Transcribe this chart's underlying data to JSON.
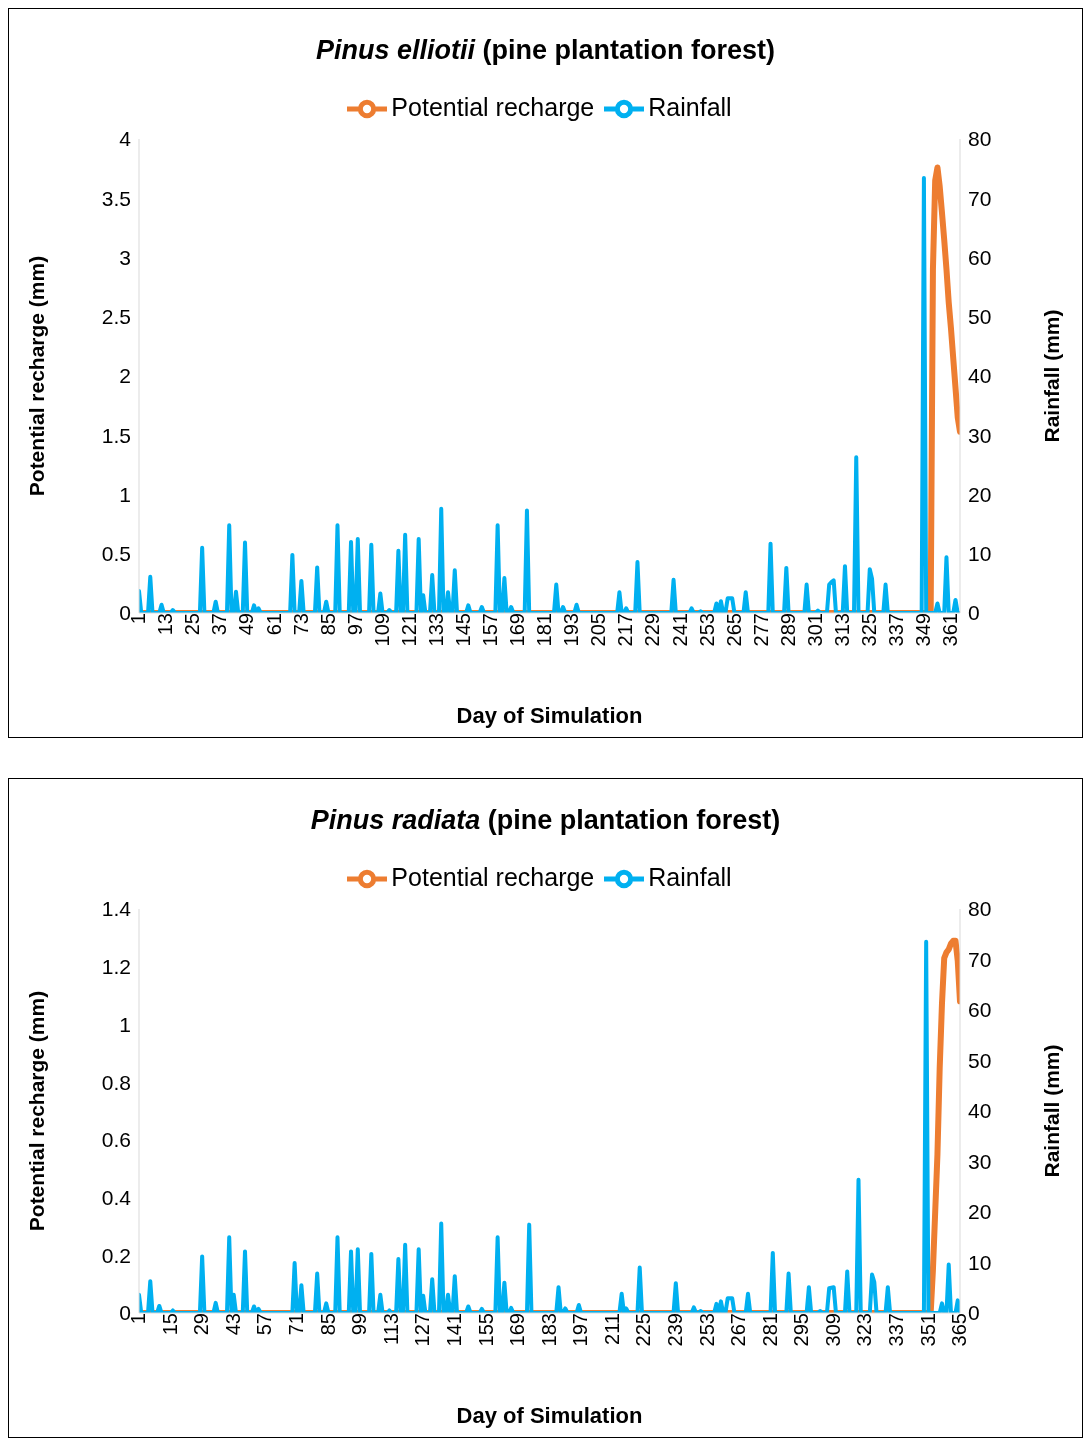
{
  "chart_data": [
    {
      "type": "line",
      "title": "Pinus elliotii (pine plantation forest)",
      "xlabel": "Day of Simulation",
      "ylabel": "Potential recharge (mm)",
      "y2label": "Rainfall (mm)",
      "xlim": [
        1,
        365
      ],
      "xticks": [
        1,
        13,
        25,
        37,
        49,
        61,
        73,
        85,
        97,
        109,
        121,
        133,
        145,
        157,
        169,
        181,
        193,
        205,
        217,
        229,
        241,
        253,
        265,
        277,
        289,
        301,
        313,
        325,
        337,
        349,
        361
      ],
      "ylim": [
        0,
        4
      ],
      "yticks": [
        0,
        0.5,
        1,
        1.5,
        2,
        2.5,
        3,
        3.5,
        4
      ],
      "y2lim": [
        0,
        80
      ],
      "y2ticks": [
        0,
        10,
        20,
        30,
        40,
        50,
        60,
        70,
        80
      ],
      "legend": "top",
      "grid": false,
      "series": [
        {
          "name": "Potential recharge",
          "color": "#ed7d31",
          "x": [
            1,
            352,
            353,
            354,
            355,
            356,
            357,
            358,
            359,
            360,
            361,
            362,
            363,
            364,
            365
          ],
          "values": [
            0,
            0,
            2.9,
            3.65,
            3.76,
            3.6,
            3.38,
            3.15,
            2.9,
            2.62,
            2.4,
            2.15,
            1.9,
            1.65,
            1.53
          ]
        },
        {
          "name": "Rainfall",
          "color": "#00b0f0",
          "axis": "y2",
          "x": [
            1,
            2,
            5,
            6,
            7,
            10,
            11,
            12,
            15,
            16,
            17,
            28,
            29,
            30,
            34,
            35,
            36,
            40,
            41,
            42,
            43,
            44,
            45,
            47,
            48,
            49,
            51,
            52,
            53,
            54,
            55,
            68,
            69,
            70,
            72,
            73,
            74,
            79,
            80,
            81,
            83,
            84,
            85,
            88,
            89,
            90,
            94,
            95,
            96,
            97,
            98,
            99,
            103,
            104,
            105,
            107,
            108,
            109,
            111,
            112,
            113,
            115,
            116,
            117,
            118,
            119,
            120,
            124,
            125,
            126,
            127,
            128,
            130,
            131,
            132,
            134,
            135,
            136,
            137,
            138,
            139,
            140,
            141,
            142,
            146,
            147,
            148,
            152,
            153,
            154,
            159,
            160,
            161,
            162,
            163,
            164,
            165,
            166,
            167,
            172,
            173,
            174,
            185,
            186,
            187,
            188,
            189,
            190,
            194,
            195,
            196,
            213,
            214,
            215,
            216,
            217,
            218,
            221,
            222,
            223,
            237,
            238,
            239,
            245,
            246,
            247,
            249,
            250,
            251,
            256,
            257,
            258,
            259,
            260,
            261,
            262,
            263,
            264,
            265,
            269,
            270,
            271,
            280,
            281,
            282,
            287,
            288,
            289,
            296,
            297,
            298,
            301,
            302,
            303,
            306,
            307,
            308,
            309,
            310,
            313,
            314,
            315,
            318,
            319,
            320,
            324,
            325,
            326,
            327,
            331,
            332,
            333,
            348,
            349,
            350,
            354,
            355,
            356,
            358,
            359,
            360,
            362,
            363,
            364,
            365
          ],
          "values": [
            3.7,
            0,
            0,
            6.1,
            0,
            0,
            1.4,
            0,
            0,
            0.5,
            0,
            0,
            11,
            0,
            0,
            1.9,
            0,
            0,
            14.8,
            0,
            0,
            3.6,
            0,
            0,
            11.9,
            0,
            0,
            1.3,
            0,
            0.8,
            0,
            0,
            9.8,
            0,
            0,
            5.4,
            0,
            0,
            7.7,
            0,
            0,
            1.9,
            0,
            0,
            14.8,
            0,
            0,
            12,
            0,
            0,
            12.5,
            0,
            0,
            11.5,
            0,
            0,
            3.3,
            0,
            0,
            0.5,
            0,
            0,
            10.5,
            0,
            0,
            13.2,
            0,
            0,
            12.5,
            0,
            3,
            0,
            0,
            6.4,
            0,
            0,
            17.6,
            0,
            0,
            3.5,
            0,
            0,
            7.2,
            0,
            0,
            1.3,
            0,
            0,
            1,
            0,
            0,
            14.8,
            0,
            0,
            5.9,
            0,
            0,
            1,
            0,
            0,
            17.3,
            0,
            0,
            4.8,
            0,
            0,
            1,
            0,
            0,
            1.4,
            0,
            0,
            3.5,
            0,
            0,
            0.8,
            0,
            0,
            8.6,
            0,
            0,
            5.6,
            0,
            0,
            0.8,
            0,
            0,
            0.3,
            0,
            0,
            1.6,
            0,
            2,
            0,
            0,
            2.5,
            2.5,
            2.5,
            0,
            0,
            3.5,
            0,
            0,
            11.7,
            0,
            0,
            7.6,
            0,
            0,
            4.8,
            0,
            0,
            0.4,
            0,
            0,
            4.8,
            5.2,
            5.5,
            0,
            0,
            7.9,
            0,
            0,
            26.3,
            0,
            0,
            7.4,
            5.8,
            0,
            0,
            4.8,
            0,
            0,
            73.4,
            0,
            0,
            1.6,
            0,
            0,
            9.4,
            0,
            0,
            2.2,
            0,
            0
          ]
        }
      ]
    },
    {
      "type": "line",
      "title": "Pinus radiata (pine plantation forest)",
      "xlabel": "Day of Simulation",
      "ylabel": "Potential recharge (mm)",
      "y2label": "Rainfall (mm)",
      "xlim": [
        1,
        365
      ],
      "xticks": [
        1,
        15,
        29,
        43,
        57,
        71,
        85,
        99,
        113,
        127,
        141,
        155,
        169,
        183,
        197,
        211,
        225,
        239,
        253,
        267,
        281,
        295,
        309,
        323,
        337,
        351,
        365
      ],
      "ylim": [
        0,
        1.4
      ],
      "yticks": [
        0,
        0.2,
        0.4,
        0.6,
        0.8,
        1,
        1.2,
        1.4
      ],
      "y2lim": [
        0,
        80
      ],
      "y2ticks": [
        0,
        10,
        20,
        30,
        40,
        50,
        60,
        70,
        80
      ],
      "legend": "top",
      "grid": false,
      "series": [
        {
          "name": "Potential recharge",
          "color": "#ed7d31",
          "x": [
            1,
            352,
            353,
            354,
            355,
            356,
            357,
            358,
            359,
            360,
            361,
            362,
            363,
            364,
            365
          ],
          "values": [
            0,
            0,
            0.15,
            0.35,
            0.55,
            0.85,
            1.07,
            1.23,
            1.25,
            1.26,
            1.28,
            1.29,
            1.29,
            1.22,
            1.08
          ]
        },
        {
          "name": "Rainfall",
          "color": "#00b0f0",
          "axis": "y2",
          "x": [
            1,
            2,
            5,
            6,
            7,
            9,
            10,
            11,
            15,
            16,
            17,
            28,
            29,
            30,
            34,
            35,
            36,
            40,
            41,
            42,
            43,
            44,
            47,
            48,
            49,
            51,
            52,
            53,
            54,
            55,
            69,
            70,
            71,
            72,
            73,
            74,
            79,
            80,
            81,
            83,
            84,
            85,
            88,
            89,
            90,
            94,
            95,
            96,
            97,
            98,
            99,
            103,
            104,
            105,
            107,
            108,
            109,
            111,
            112,
            113,
            115,
            116,
            117,
            118,
            119,
            120,
            124,
            125,
            126,
            127,
            128,
            130,
            131,
            132,
            134,
            135,
            136,
            137,
            138,
            139,
            140,
            141,
            142,
            146,
            147,
            148,
            152,
            153,
            154,
            159,
            160,
            161,
            162,
            163,
            164,
            165,
            166,
            167,
            173,
            174,
            175,
            186,
            187,
            188,
            189,
            190,
            191,
            195,
            196,
            197,
            214,
            215,
            216,
            217,
            218,
            222,
            223,
            224,
            238,
            239,
            240,
            246,
            247,
            248,
            249,
            250,
            251,
            256,
            257,
            258,
            259,
            260,
            261,
            262,
            263,
            264,
            265,
            270,
            271,
            272,
            281,
            282,
            283,
            288,
            289,
            290,
            297,
            298,
            299,
            302,
            303,
            304,
            306,
            307,
            308,
            309,
            310,
            314,
            315,
            316,
            319,
            320,
            321,
            325,
            326,
            327,
            328,
            332,
            333,
            334,
            349,
            350,
            351,
            356,
            357,
            358,
            359,
            360,
            361,
            363,
            364,
            365
          ],
          "values": [
            3.6,
            0,
            0,
            6.3,
            0,
            0,
            1.4,
            0,
            0,
            0.5,
            0,
            0,
            11.2,
            0,
            0,
            2,
            0,
            0,
            15,
            0,
            3.6,
            0,
            0,
            12.2,
            0,
            0,
            1.3,
            0,
            0.8,
            0,
            0,
            9.9,
            0,
            0,
            5.5,
            0,
            0,
            7.8,
            0,
            0,
            1.9,
            0,
            0,
            15,
            0,
            0,
            12.2,
            0,
            0,
            12.6,
            0,
            0,
            11.7,
            0,
            0,
            3.6,
            0,
            0,
            0.5,
            0,
            0,
            10.7,
            0,
            0,
            13.5,
            0,
            0,
            12.6,
            0,
            3.4,
            0,
            0,
            6.7,
            0,
            0,
            17.7,
            0,
            0,
            3.6,
            0,
            0,
            7.3,
            0,
            0,
            1.3,
            0,
            0,
            0.8,
            0,
            0,
            15,
            0,
            0,
            6,
            0,
            0,
            1,
            0,
            0,
            17.5,
            0,
            0,
            5.1,
            0,
            0,
            0.9,
            0,
            0,
            1.6,
            0,
            0,
            3.8,
            0,
            0.9,
            0,
            0,
            9,
            0,
            0,
            5.9,
            0,
            0,
            1.1,
            0,
            0,
            0.4,
            0,
            0,
            1.8,
            0,
            2.3,
            0,
            0,
            2.9,
            2.9,
            2.9,
            0,
            0,
            3.8,
            0,
            0,
            11.9,
            0,
            0,
            7.8,
            0,
            0,
            5.1,
            0,
            0,
            0.4,
            0,
            0,
            4.9,
            5,
            5.1,
            0,
            0,
            8.2,
            0,
            0,
            26.4,
            0,
            0,
            7.6,
            6.1,
            0,
            0,
            5.1,
            0,
            0,
            73.5,
            0,
            0,
            1.9,
            0,
            0,
            9.6,
            0,
            0,
            2.5,
            0
          ]
        }
      ]
    }
  ]
}
